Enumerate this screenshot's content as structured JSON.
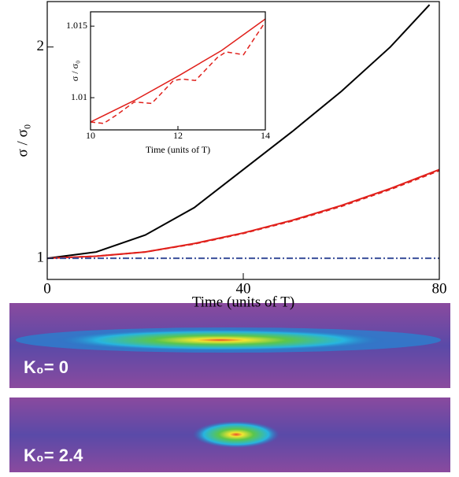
{
  "chart_data": [
    {
      "type": "line",
      "xlabel": "Time (units of T)",
      "ylabel": "σ / σ₀",
      "xlim": [
        0,
        80
      ],
      "ylim": [
        0.9,
        2.215
      ],
      "xticks": [
        0,
        40,
        80
      ],
      "yticks": [
        1,
        2
      ],
      "series": [
        {
          "color": "#000000",
          "dash": "solid",
          "x": [
            0,
            10,
            20,
            30,
            40,
            50,
            60,
            70,
            78
          ],
          "values": [
            1,
            1.03,
            1.11,
            1.24,
            1.42,
            1.6,
            1.79,
            2.0,
            2.2
          ]
        },
        {
          "color": "#e0201b",
          "dash": "solid",
          "x": [
            0,
            10,
            20,
            30,
            40,
            50,
            60,
            70,
            80
          ],
          "values": [
            1,
            1.01,
            1.03,
            1.07,
            1.12,
            1.18,
            1.25,
            1.33,
            1.42
          ]
        },
        {
          "color": "#e0201b",
          "dash": "dashed",
          "x": [
            0,
            10,
            20,
            30,
            40,
            50,
            60,
            70,
            80
          ],
          "values": [
            1,
            1.01,
            1.03,
            1.068,
            1.118,
            1.177,
            1.246,
            1.326,
            1.415
          ]
        },
        {
          "color": "#3a4f9a",
          "dash": "dashdot",
          "x": [
            0,
            80
          ],
          "values": [
            1,
            1
          ]
        }
      ]
    },
    {
      "type": "line",
      "xlabel": "Time (units of T)",
      "ylabel": "σ / σ₀",
      "xlim": [
        10,
        14
      ],
      "ylim": [
        1.00775,
        1.016
      ],
      "xticks": [
        10,
        12,
        14
      ],
      "yticks": [
        1.01,
        1.015
      ],
      "series": [
        {
          "color": "#e0201b",
          "dash": "solid",
          "x": [
            10,
            11,
            12,
            13,
            14
          ],
          "values": [
            1.0083,
            1.0098,
            1.0115,
            1.0133,
            1.0155
          ]
        },
        {
          "color": "#e0201b",
          "dash": "dashed",
          "x": [
            10,
            10.3,
            10.6,
            11,
            11.4,
            11.9,
            12.1,
            12.4,
            12.9,
            13.1,
            13.5,
            14
          ],
          "values": [
            1.0083,
            1.0082,
            1.0088,
            1.0097,
            1.0096,
            1.0112,
            1.0113,
            1.0112,
            1.0128,
            1.0132,
            1.013,
            1.0153
          ]
        }
      ]
    }
  ],
  "panels": [
    {
      "label": "K₀= 0"
    },
    {
      "label": "K₀= 2.4"
    }
  ]
}
